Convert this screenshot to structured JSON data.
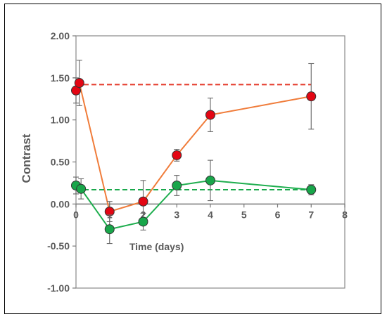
{
  "chart_data": {
    "type": "scatter",
    "xlabel": "Time (days)",
    "ylabel": "Contrast",
    "xlim": [
      0,
      8
    ],
    "ylim": [
      -1.0,
      2.0
    ],
    "x_ticks": [
      "0",
      "1",
      "2",
      "3",
      "4",
      "5",
      "6",
      "7",
      "8"
    ],
    "y_ticks": [
      "2.00",
      "1.50",
      "1.00",
      "0.50",
      "0.00",
      "-0.50",
      "-1.00"
    ],
    "grid": false,
    "legend": "none",
    "series": [
      {
        "color": "#e53b2c",
        "line_color": "#f07c3a",
        "marker_fill": "#e30613",
        "x": [
          0,
          0.1,
          1,
          2,
          3,
          4,
          7
        ],
        "y": [
          1.35,
          1.44,
          -0.09,
          0.03,
          0.58,
          1.06,
          1.28
        ],
        "err": [
          0.15,
          0.27,
          0.12,
          0.25,
          0.07,
          0.2,
          0.39
        ],
        "reference_line": 1.42
      },
      {
        "color": "#19a84b",
        "line_color": "#1fae4f",
        "marker_fill": "#18a64a",
        "x": [
          0,
          0.15,
          1,
          2,
          3,
          4,
          7
        ],
        "y": [
          0.22,
          0.18,
          -0.3,
          -0.21,
          0.22,
          0.28,
          0.17
        ],
        "err": [
          0.1,
          0.12,
          0.17,
          0.1,
          0.12,
          0.24,
          0.06
        ],
        "reference_line": 0.17
      }
    ]
  }
}
